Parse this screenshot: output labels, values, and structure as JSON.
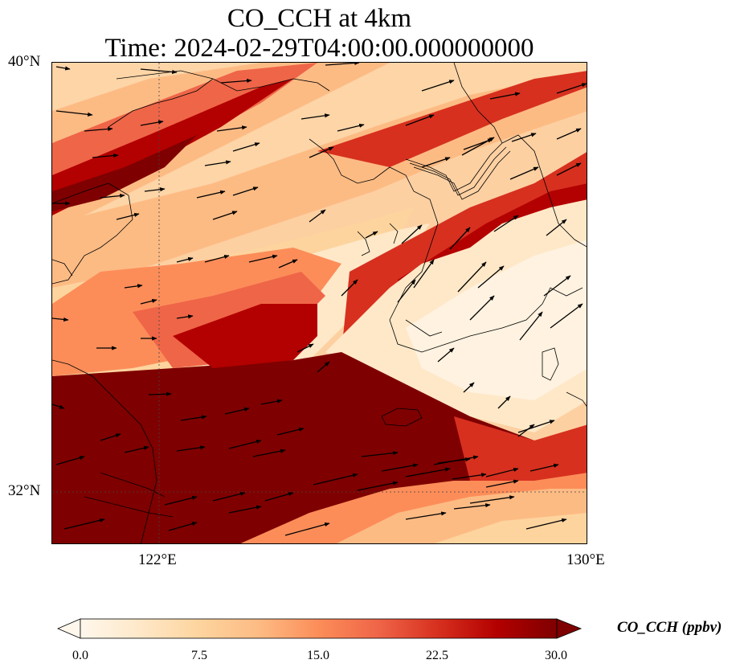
{
  "title": {
    "line1": "CO_CCH at 4km",
    "line2": "Time: 2024-02-29T04:00:00.000000000"
  },
  "map": {
    "lat_labels": [
      "40°N",
      "32°N"
    ],
    "lon_labels": [
      "122°E",
      "130°E"
    ],
    "extent": {
      "lon_min": 120,
      "lon_max": 130,
      "lat_min": 31,
      "lat_max": 40
    },
    "gridlines": {
      "lons": [
        122
      ],
      "lats": [
        32
      ],
      "style": "dotted"
    }
  },
  "colorbar": {
    "label": "CO_CCH (ppbv)",
    "ticks": [
      "0.0",
      "7.5",
      "15.0",
      "22.5",
      "30.0"
    ],
    "min": 0,
    "max": 30,
    "extend": "both",
    "colormap": [
      "#fff7ec",
      "#fee8c8",
      "#fdd49e",
      "#fdbb84",
      "#fc8d59",
      "#ef6548",
      "#d7301f",
      "#b30000",
      "#7f0000"
    ]
  },
  "chart_data": {
    "type": "heatmap",
    "title": "CO_CCH at 4km",
    "subtitle": "Time: 2024-02-29T04:00:00.000000000",
    "variable": "CO_CCH",
    "units": "ppbv",
    "value_range": [
      0,
      30
    ],
    "overlay": "wind vectors",
    "features": [
      {
        "region": "southwest sector (lon 120–125, lat 31–34)",
        "value": 30
      },
      {
        "region": "band along lat 38.5–39 (Bohai)",
        "value": 24
      },
      {
        "region": "diagonal band toward Korean peninsula",
        "value": 25
      },
      {
        "region": "southern Korea / east",
        "value": 2
      },
      {
        "region": "north band lat 39.5",
        "value": 10
      }
    ]
  }
}
